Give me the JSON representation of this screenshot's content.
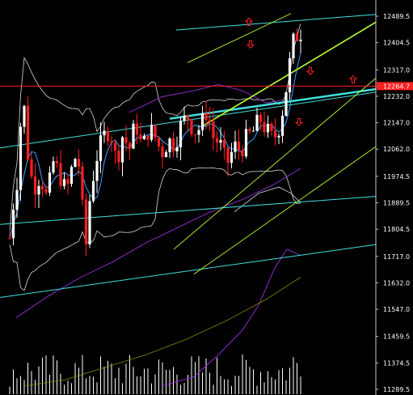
{
  "chart_data": {
    "type": "candlestick",
    "y_ticks": [
      "12489.5",
      "12404.5",
      "12317.0",
      "12232.0",
      "12147.0",
      "12062.0",
      "11974.5",
      "11889.5",
      "11804.5",
      "11717.0",
      "11632.0",
      "11547.0",
      "11459.5",
      "11374.5",
      "11289.5"
    ],
    "ylim": [
      11289.5,
      12489.5
    ],
    "current_price_label": "12264.7",
    "colors": {
      "background": "#000000",
      "axis": "#c8c8c8",
      "bull_candle": "#ffffff",
      "bear_candle": "#ff2020",
      "price_line": "#ff2020",
      "bollinger": "#d8d8d8",
      "ma_fast": "#3aa0ff",
      "ma_purple": "#9a30e0",
      "ma_slow": "#8a8a00",
      "cyan_channel": "#40e0e0",
      "green_channel": "#b8ff30",
      "volume": "#ffffff",
      "arrow": "#ff2020"
    },
    "arrow_markers": [
      {
        "direction": "up"
      },
      {
        "direction": "down"
      },
      {
        "direction": "down"
      },
      {
        "direction": "up"
      },
      {
        "direction": "down"
      }
    ]
  }
}
